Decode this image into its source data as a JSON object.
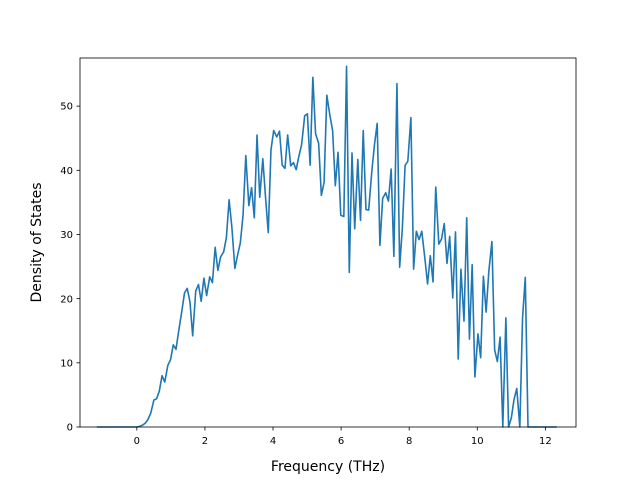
{
  "chart_data": {
    "type": "line",
    "title": "",
    "xlabel": "Frequency (THz)",
    "ylabel": "Density of States",
    "xlim": [
      -1.67,
      12.9
    ],
    "ylim": [
      0,
      57.5
    ],
    "xticks": [
      0,
      2,
      4,
      6,
      8,
      10,
      12
    ],
    "yticks": [
      0,
      10,
      20,
      30,
      40,
      50
    ],
    "grid": false,
    "legend": "none",
    "series": [
      {
        "color": "#1f77b4",
        "x": [
          -1.15,
          -1.07,
          -0.98,
          -0.9,
          -0.82,
          -0.74,
          -0.66,
          -0.57,
          -0.49,
          -0.41,
          -0.33,
          -0.25,
          -0.16,
          -0.08,
          0.0,
          0.08,
          0.17,
          0.25,
          0.33,
          0.41,
          0.5,
          0.58,
          0.66,
          0.74,
          0.82,
          0.91,
          0.99,
          1.07,
          1.15,
          1.23,
          1.32,
          1.4,
          1.48,
          1.56,
          1.64,
          1.73,
          1.81,
          1.89,
          1.97,
          2.05,
          2.14,
          2.22,
          2.3,
          2.38,
          2.46,
          2.55,
          2.63,
          2.71,
          2.79,
          2.88,
          2.96,
          3.04,
          3.12,
          3.2,
          3.29,
          3.37,
          3.45,
          3.53,
          3.61,
          3.7,
          3.78,
          3.86,
          3.94,
          4.02,
          4.11,
          4.19,
          4.27,
          4.35,
          4.43,
          4.52,
          4.6,
          4.68,
          4.76,
          4.84,
          4.93,
          5.01,
          5.09,
          5.17,
          5.25,
          5.34,
          5.42,
          5.5,
          5.58,
          5.67,
          5.75,
          5.83,
          5.91,
          5.99,
          6.08,
          6.16,
          6.24,
          6.32,
          6.4,
          6.49,
          6.57,
          6.65,
          6.73,
          6.81,
          6.9,
          6.98,
          7.06,
          7.14,
          7.22,
          7.31,
          7.39,
          7.47,
          7.55,
          7.64,
          7.72,
          7.8,
          7.88,
          7.96,
          8.05,
          8.13,
          8.21,
          8.29,
          8.37,
          8.46,
          8.54,
          8.62,
          8.7,
          8.78,
          8.87,
          8.95,
          9.03,
          9.11,
          9.19,
          9.28,
          9.36,
          9.44,
          9.52,
          9.61,
          9.69,
          9.77,
          9.85,
          9.93,
          10.02,
          10.1,
          10.18,
          10.26,
          10.34,
          10.43,
          10.51,
          10.59,
          10.67,
          10.75,
          10.84,
          10.92,
          11.0,
          11.08,
          11.16,
          11.25,
          11.33,
          11.41,
          11.49,
          11.57,
          11.66,
          11.74,
          11.82,
          11.9,
          11.98,
          12.07,
          12.15,
          12.23,
          12.31
        ],
        "y": [
          0,
          0,
          0,
          0,
          0,
          0,
          0,
          0,
          0,
          0,
          0,
          0,
          0,
          0,
          0,
          0.1,
          0.3,
          0.6,
          1.2,
          2.2,
          4.2,
          4.4,
          5.6,
          8.0,
          7.0,
          9.6,
          10.5,
          12.8,
          12.1,
          15.0,
          18.0,
          20.9,
          21.6,
          19.5,
          14.2,
          21.2,
          22.2,
          19.6,
          23.2,
          20.5,
          23.4,
          22.5,
          28.0,
          24.4,
          26.5,
          27.3,
          29.5,
          35.4,
          31.2,
          24.7,
          26.8,
          28.7,
          33.0,
          42.3,
          34.5,
          37.3,
          32.6,
          45.5,
          35.8,
          41.8,
          35.8,
          30.3,
          43.2,
          46.2,
          45.2,
          46.1,
          40.8,
          40.3,
          45.5,
          40.7,
          41.2,
          40.1,
          42.2,
          44.0,
          48.5,
          48.8,
          40.8,
          54.5,
          45.7,
          44.2,
          36.1,
          38.1,
          51.7,
          48.6,
          46.2,
          37.6,
          42.8,
          33.0,
          32.8,
          56.2,
          24.1,
          42.7,
          30.9,
          41.7,
          32.2,
          46.2,
          33.9,
          33.8,
          39.7,
          44.0,
          47.3,
          28.3,
          35.6,
          36.5,
          35.2,
          40.2,
          26.6,
          53.5,
          24.9,
          31.1,
          40.8,
          41.4,
          48.2,
          24.6,
          30.5,
          29.2,
          30.5,
          26.3,
          22.3,
          26.7,
          22.6,
          37.4,
          28.5,
          29.3,
          31.7,
          25.5,
          29.7,
          20.1,
          30.4,
          10.6,
          24.6,
          16.5,
          32.6,
          13.7,
          25.3,
          7.8,
          14.5,
          10.8,
          23.5,
          17.9,
          24.3,
          28.9,
          12.0,
          10.2,
          14.0,
          0.0,
          17.0,
          0.0,
          1.4,
          4.3,
          6.0,
          0.0,
          17.0,
          23.3,
          0.0,
          0,
          0,
          0,
          0,
          0,
          0,
          0,
          0,
          0,
          0
        ]
      }
    ]
  }
}
